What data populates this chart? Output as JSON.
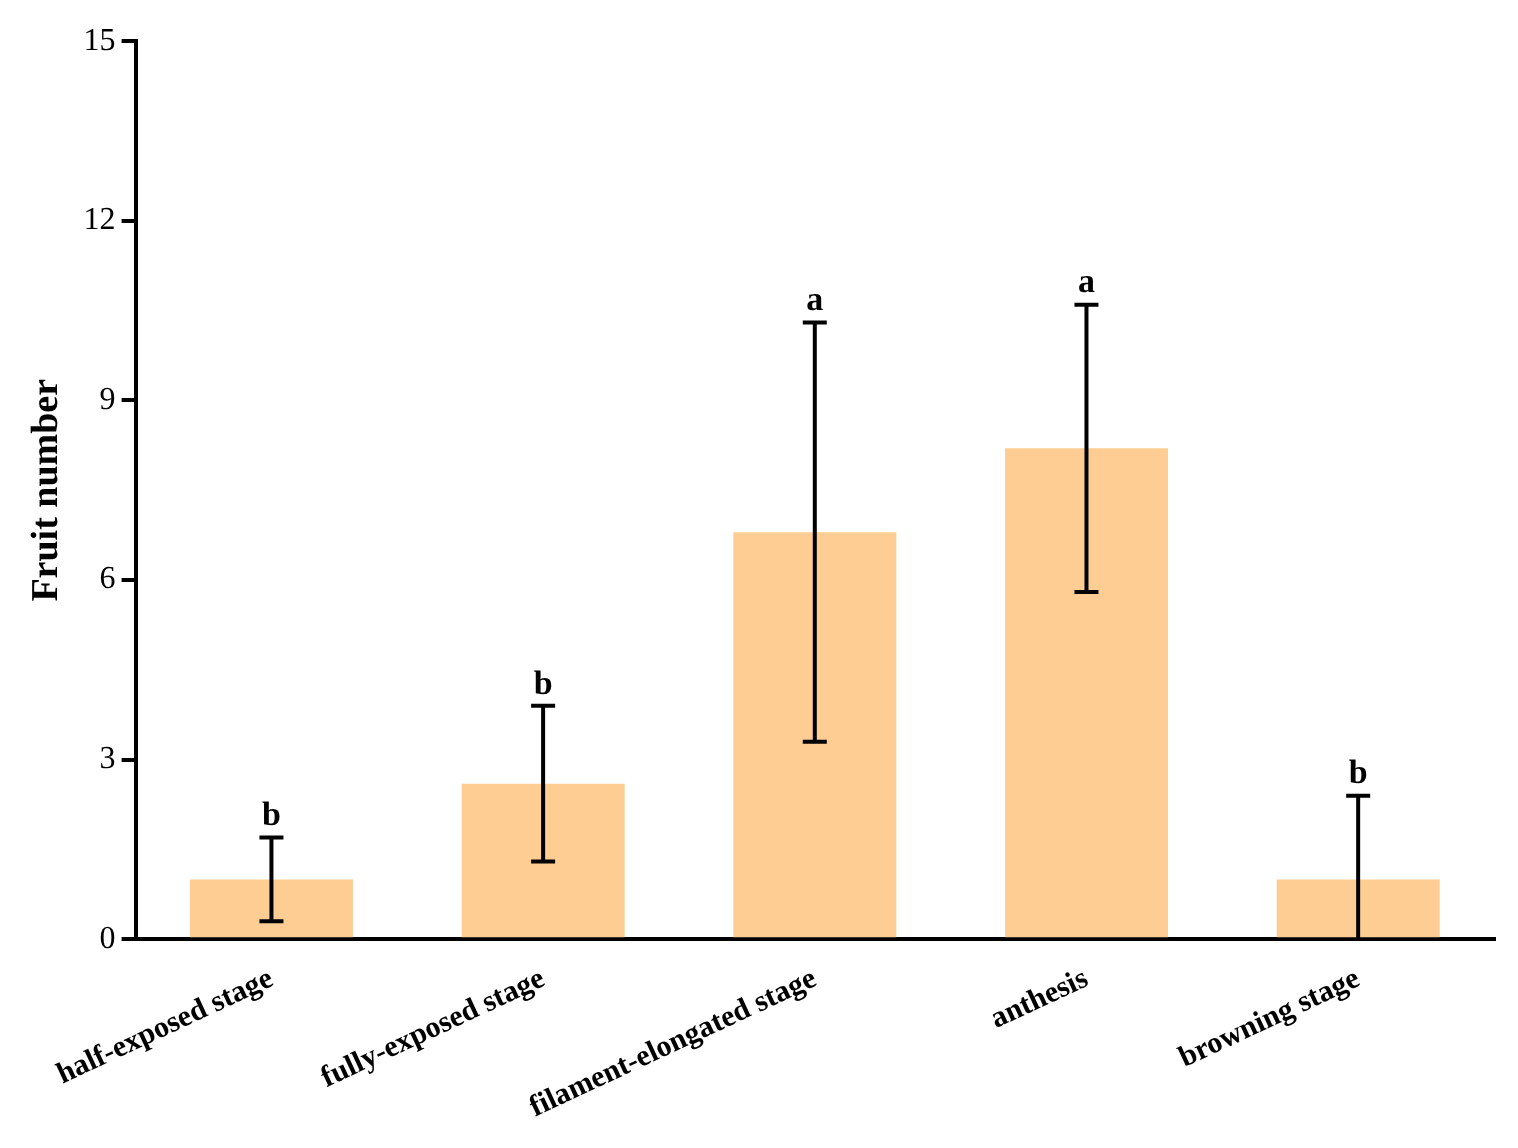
{
  "chart_data": {
    "type": "bar",
    "ylabel": "Fruit number",
    "categories": [
      "half-exposed stage",
      "fully-exposed stage",
      "filament-elongated stage",
      "anthesis",
      "browning stage"
    ],
    "values": [
      1.0,
      2.6,
      6.8,
      8.2,
      1.0
    ],
    "errors": [
      0.7,
      1.3,
      3.5,
      2.4,
      [
        0,
        2.4
      ]
    ],
    "color": "#fdcd94",
    "ylim": [
      0,
      15
    ],
    "yticks": [
      0,
      3,
      6,
      9,
      12,
      15
    ],
    "grid": false,
    "legend": false,
    "annotations": [
      {
        "text": "b",
        "x": "half-exposed stage",
        "y": 1.7
      },
      {
        "text": "b",
        "x": "fully-exposed stage",
        "y": 3.9
      },
      {
        "text": "a",
        "x": "filament-elongated stage",
        "y": 10.3
      },
      {
        "text": "a",
        "x": "anthesis",
        "y": 10.6
      },
      {
        "text": "b",
        "x": "browning stage",
        "y": 2.4
      }
    ]
  }
}
